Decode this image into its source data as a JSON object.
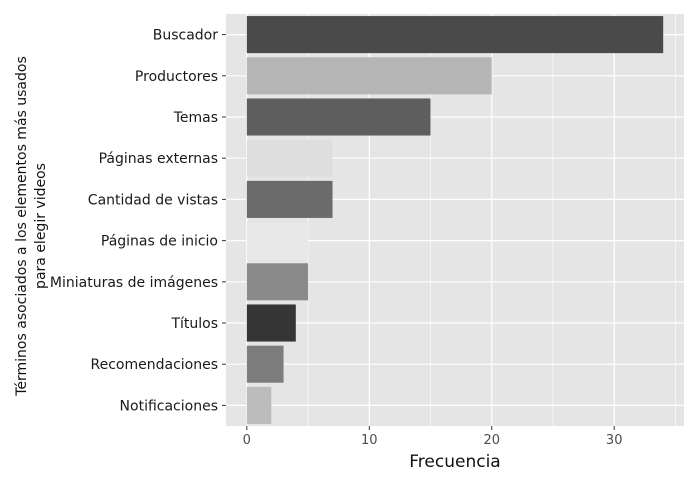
{
  "chart_data": {
    "type": "bar",
    "orientation": "horizontal",
    "categories": [
      "Buscador",
      "Productores",
      "Temas",
      "Páginas externas",
      "Cantidad de vistas",
      "Páginas de inicio",
      "Miniaturas de imágenes",
      "Títulos",
      "Recomendaciones",
      "Notificaciones"
    ],
    "values": [
      34,
      20,
      15,
      7,
      7,
      5,
      5,
      4,
      3,
      2
    ],
    "bar_colors": [
      "#4a4a4a",
      "#b5b5b5",
      "#5e5e5e",
      "#dedede",
      "#6b6b6b",
      "#e8e8e8",
      "#8a8a8a",
      "#353535",
      "#7d7d7d",
      "#bcbcbc"
    ],
    "xlabel": "Frecuencia",
    "ylabel_lines": [
      "Términos asociados a los elementos más usados",
      "para elegir videos"
    ],
    "xticks": [
      0,
      10,
      20,
      30
    ],
    "xlim": [
      -1.7,
      35.7
    ],
    "grid": true,
    "panel_background": "#e5e5e5",
    "grid_color": "#ffffff"
  }
}
